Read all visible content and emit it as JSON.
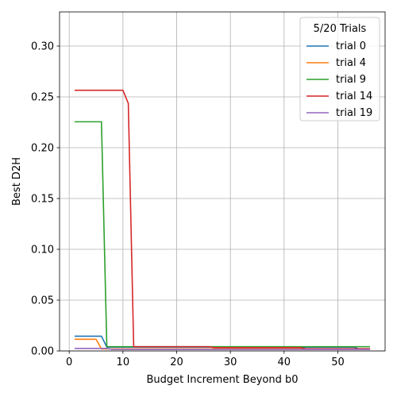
{
  "chart_data": {
    "type": "line",
    "xlabel": "Budget Increment Beyond b0",
    "ylabel": "Best D2H",
    "xlim": [
      -1.8,
      58.8
    ],
    "ylim": [
      0,
      0.3336
    ],
    "xticks": [
      0,
      10,
      20,
      30,
      40,
      50
    ],
    "yticks": [
      0.0,
      0.05,
      0.1,
      0.15,
      0.2,
      0.25,
      0.3
    ],
    "xtick_labels": [
      "0",
      "10",
      "20",
      "30",
      "40",
      "50"
    ],
    "ytick_labels": [
      "0.00",
      "0.05",
      "0.10",
      "0.15",
      "0.20",
      "0.25",
      "0.30"
    ],
    "grid": true,
    "legend": {
      "title": "5/20 Trials",
      "placement": "top-right"
    },
    "series": [
      {
        "name": "trial 0",
        "color": "#1f77b4",
        "x": [
          1,
          6,
          7,
          53,
          54,
          56
        ],
        "y": [
          0.0145,
          0.0145,
          0.0038,
          0.0038,
          0.0018,
          0.0018
        ]
      },
      {
        "name": "trial 4",
        "color": "#ff7f0e",
        "x": [
          1,
          5,
          6,
          56
        ],
        "y": [
          0.0115,
          0.0115,
          0.002,
          0.002
        ]
      },
      {
        "name": "trial 9",
        "color": "#2ca02c",
        "x": [
          1,
          6,
          7,
          56
        ],
        "y": [
          0.2255,
          0.2255,
          0.0042,
          0.0042
        ]
      },
      {
        "name": "trial 14",
        "color": "#d62728",
        "x": [
          1,
          10,
          11,
          12,
          26,
          27,
          43,
          44,
          56
        ],
        "y": [
          0.2565,
          0.2565,
          0.2435,
          0.0042,
          0.0042,
          0.0033,
          0.0033,
          0.0022,
          0.0022
        ]
      },
      {
        "name": "trial 19",
        "color": "#9467bd",
        "x": [
          1,
          7,
          8,
          56
        ],
        "y": [
          0.0025,
          0.0025,
          0.0015,
          0.0015
        ]
      }
    ]
  }
}
